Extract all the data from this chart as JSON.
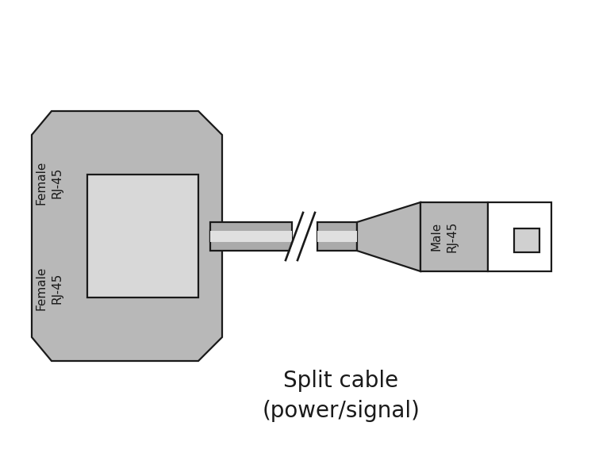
{
  "bg_color": "#ffffff",
  "connector_fill": "#b8b8b8",
  "connector_edge": "#1a1a1a",
  "cable_fill_dark": "#aaaaaa",
  "cable_fill_light": "#e0e0e0",
  "inner_rect_fill": "#d8d8d8",
  "plug_face_fill": "#ffffff",
  "plug_tab_fill": "#d0d0d0",
  "text_color": "#1a1a1a",
  "label_top": "Female\nRJ-45",
  "label_bottom": "Female\nRJ-45",
  "label_right": "Male\nRJ-45",
  "caption_line1": "Split cable",
  "caption_line2": "(power/signal)",
  "caption_fontsize": 20,
  "label_fontsize": 11,
  "lw": 1.6
}
